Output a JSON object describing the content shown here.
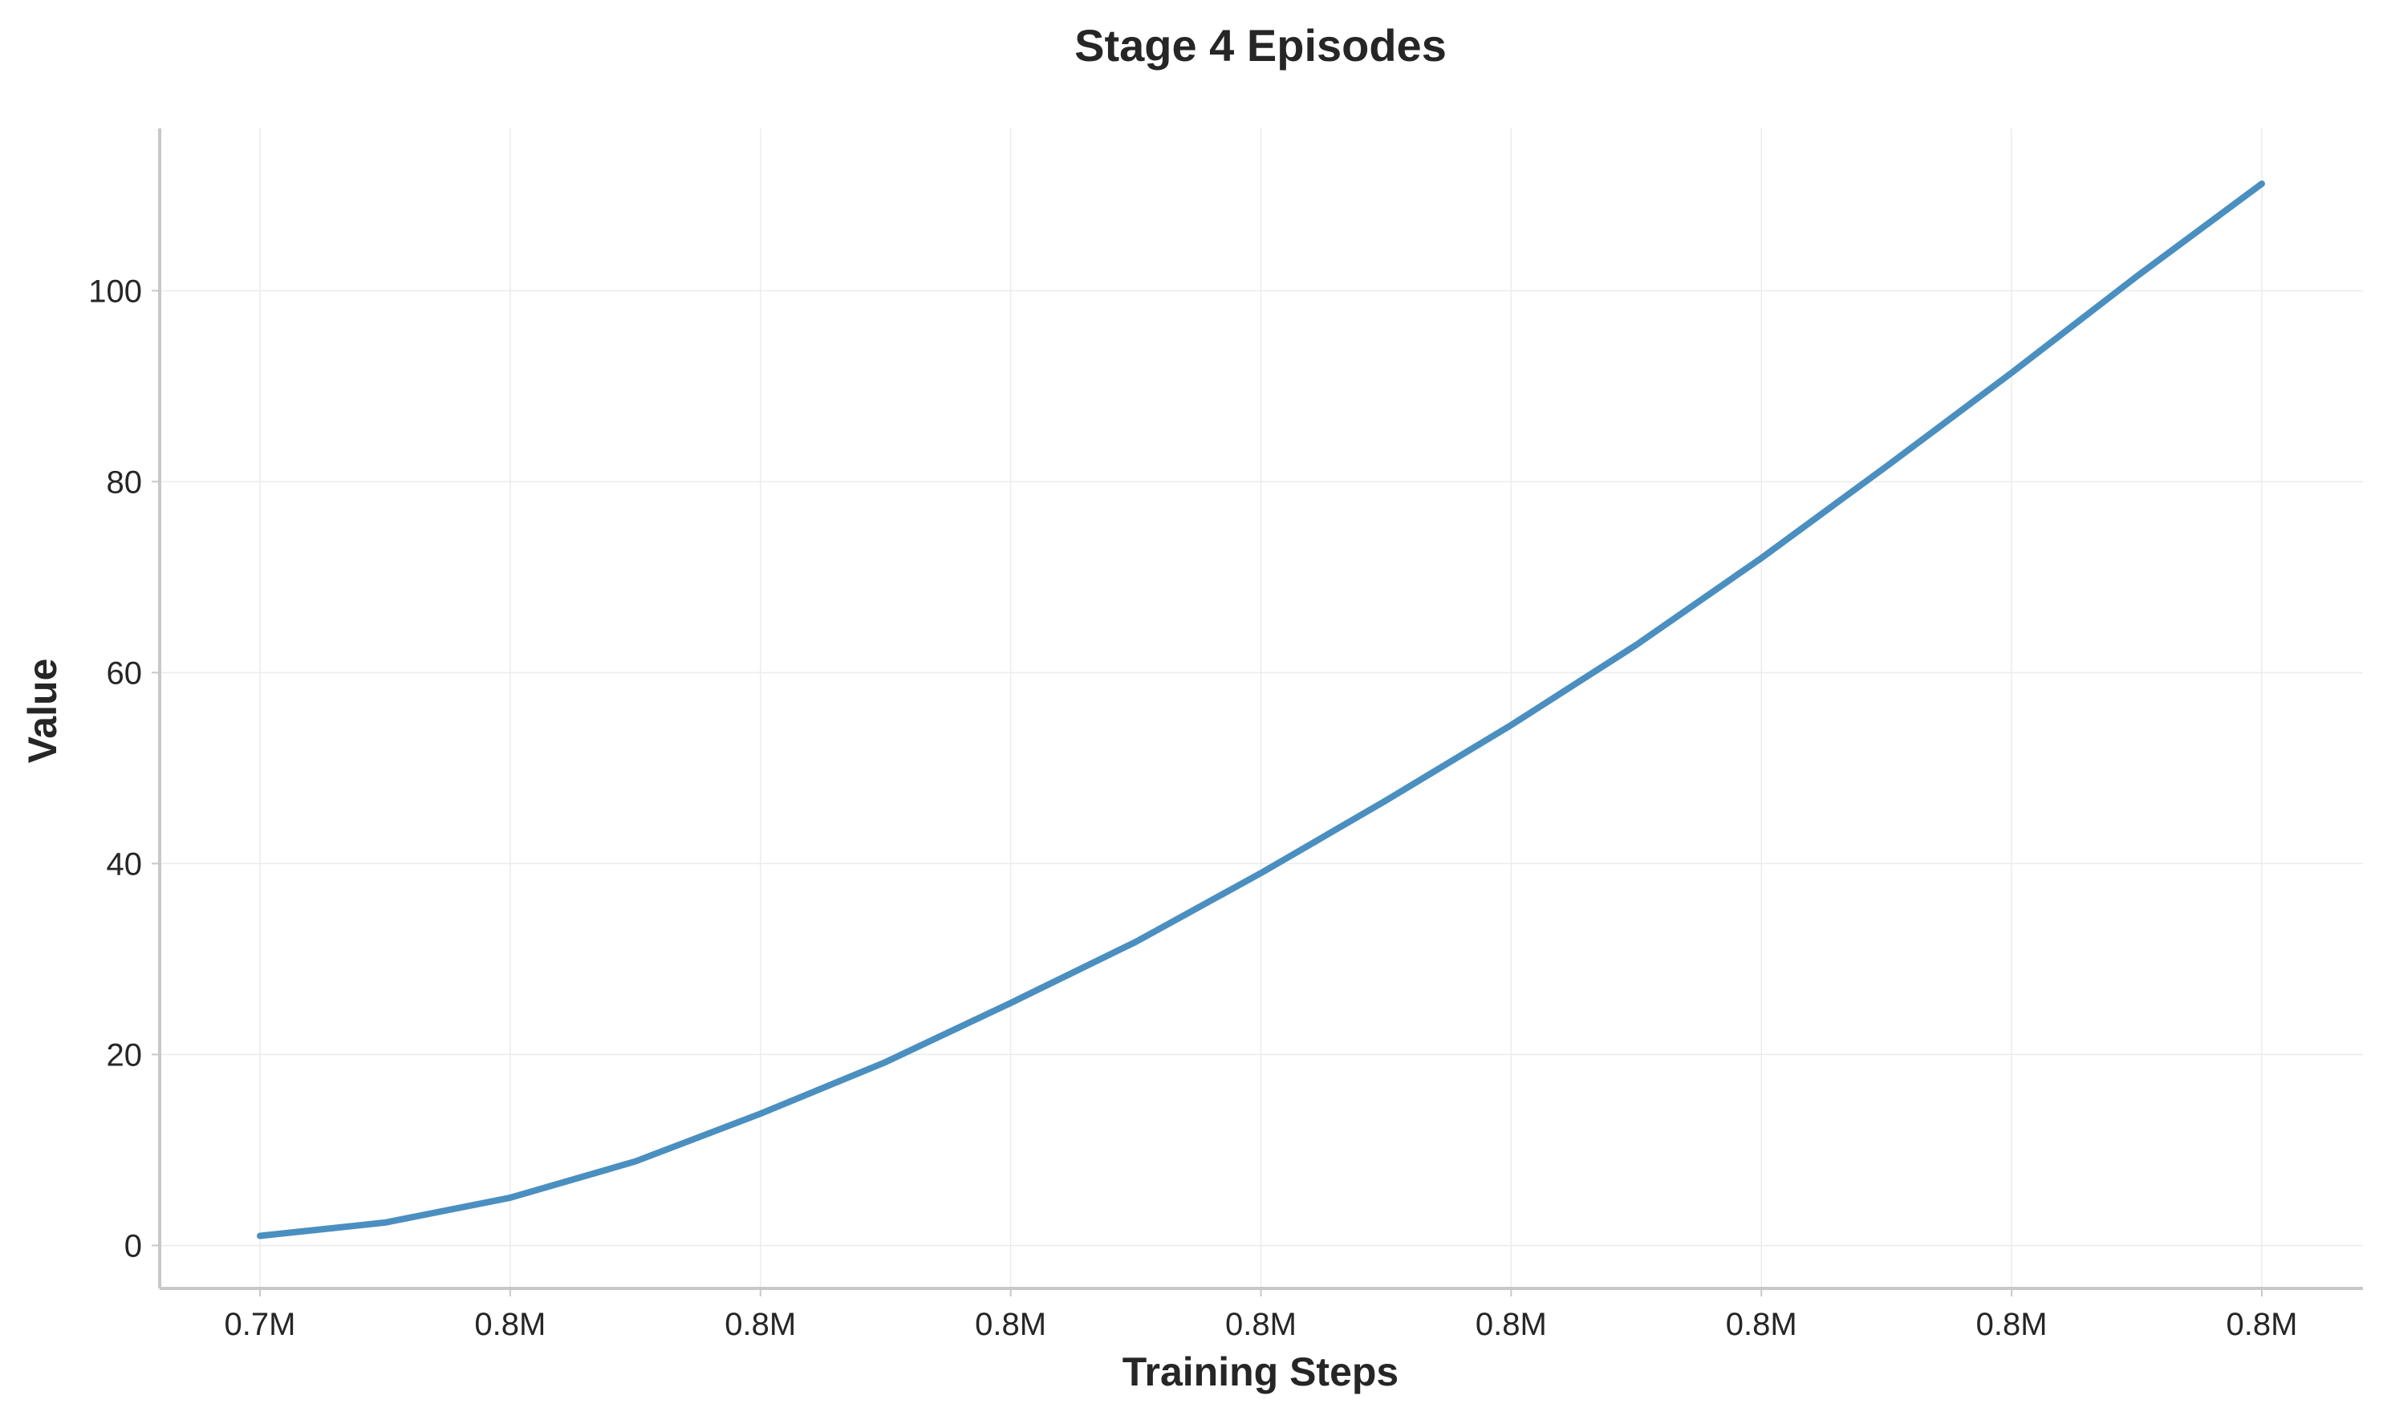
{
  "chart_data": {
    "type": "line",
    "title": "Stage 4 Episodes",
    "xlabel": "Training Steps",
    "ylabel": "Value",
    "x_tick_labels": [
      "0.7M",
      "0.8M",
      "0.8M",
      "0.8M",
      "0.8M",
      "0.8M",
      "0.8M",
      "0.8M",
      "0.8M"
    ],
    "y_ticks": [
      0,
      20,
      40,
      60,
      80,
      100
    ],
    "ylim": [
      -4.5,
      117
    ],
    "grid": true,
    "series": [
      {
        "color": "#4a8fc0",
        "values": [
          1.0,
          2.4,
          5.0,
          8.8,
          13.8,
          19.2,
          25.4,
          31.8,
          39.0,
          46.6,
          54.5,
          62.9,
          72.0,
          81.6,
          91.4,
          101.5,
          111.2
        ]
      }
    ]
  }
}
